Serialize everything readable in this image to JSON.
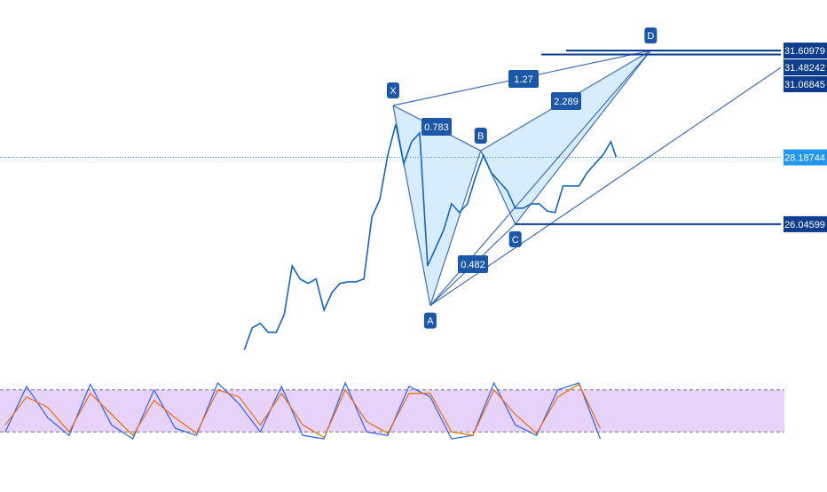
{
  "chart_data": {
    "type": "line",
    "xlim": [
      -92,
      202
    ],
    "ylim": [
      21.3,
      33.23
    ],
    "yticks": [
      31.60979,
      31.48242,
      31.06845,
      28.18744,
      26.04599
    ],
    "price": {
      "color": "#1565c0",
      "x": [
        0,
        3,
        6,
        9,
        12,
        15,
        18,
        21,
        24,
        27,
        30,
        33,
        36,
        39,
        42,
        45,
        48,
        51,
        54,
        57,
        60,
        63,
        66,
        69,
        72,
        75,
        78,
        81,
        84,
        87,
        90,
        93,
        96,
        99,
        102,
        105,
        108,
        111,
        114,
        117,
        120,
        123,
        126,
        129,
        132,
        135,
        138,
        140
      ],
      "values": [
        22.02,
        22.73,
        22.87,
        22.58,
        22.58,
        23.15,
        24.71,
        24.29,
        24.15,
        24.29,
        23.29,
        23.86,
        24.15,
        24.2,
        24.2,
        24.29,
        26.27,
        26.84,
        28.26,
        29.25,
        27.98,
        28.69,
        28.97,
        24.71,
        25.28,
        25.85,
        26.7,
        26.42,
        26.7,
        27.55,
        28.26,
        27.69,
        27.41,
        27.12,
        26.56,
        26.56,
        26.7,
        26.7,
        26.47,
        26.42,
        27.27,
        27.27,
        27.27,
        27.69,
        27.98,
        28.26,
        28.69,
        28.19
      ]
    },
    "pattern": {
      "points": [
        {
          "label": "X",
          "x": 56,
          "y": 29.85
        },
        {
          "label": "A",
          "x": 70,
          "y": 23.44
        },
        {
          "label": "B",
          "x": 89,
          "y": 28.4
        },
        {
          "label": "C",
          "x": 102,
          "y": 26.046
        },
        {
          "label": "D",
          "x": 153,
          "y": 31.61
        }
      ],
      "ratios": [
        0.783,
        0.482,
        2.289,
        1.27
      ]
    },
    "oscillator": {
      "ylim": [
        0,
        100
      ],
      "bands": [
        80,
        20
      ],
      "x": [
        -90,
        -82,
        -74,
        -66,
        -58,
        -50,
        -42,
        -34,
        -26,
        -18,
        -10,
        -2,
        6,
        14,
        22,
        30,
        38,
        46,
        54,
        62,
        70,
        78,
        86,
        94,
        102,
        110,
        118,
        126,
        134
      ],
      "series": [
        {
          "color": "#2962ff",
          "values": [
            20,
            85,
            40,
            15,
            88,
            30,
            10,
            80,
            25,
            15,
            90,
            60,
            20,
            85,
            15,
            10,
            90,
            20,
            15,
            85,
            70,
            10,
            15,
            90,
            30,
            15,
            80,
            90,
            10
          ]
        },
        {
          "color": "#ef6c00",
          "values": [
            30,
            70,
            55,
            20,
            75,
            45,
            15,
            65,
            40,
            18,
            80,
            70,
            30,
            75,
            30,
            12,
            80,
            35,
            18,
            75,
            75,
            20,
            15,
            80,
            45,
            18,
            70,
            88,
            25
          ]
        }
      ]
    }
  }
}
